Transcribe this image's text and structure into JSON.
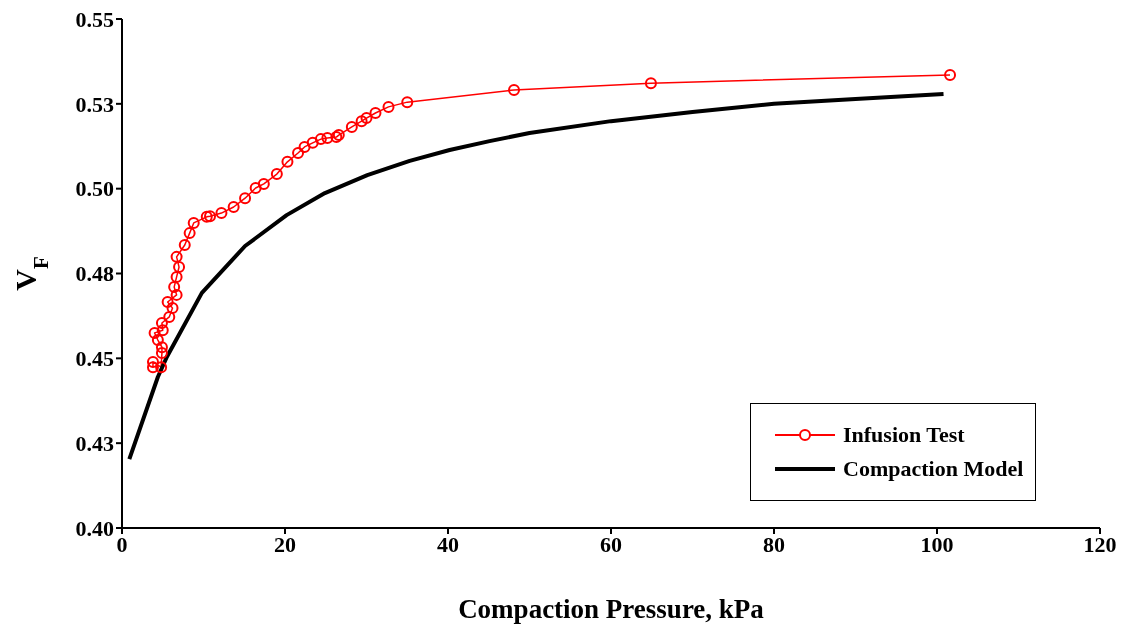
{
  "chart_data": {
    "type": "line",
    "xlabel": "Compaction Pressure, kPa",
    "ylabel": "V$_{F}$",
    "xlim": [
      0,
      120
    ],
    "xticks": [
      0,
      20,
      40,
      60,
      80,
      100,
      120
    ],
    "ylim": [
      0.4,
      0.55
    ],
    "yticks": [
      {
        "value": 0.4,
        "label": "0.40"
      },
      {
        "value": 0.425,
        "label": "0.43"
      },
      {
        "value": 0.45,
        "label": "0.45"
      },
      {
        "value": 0.475,
        "label": "0.48"
      },
      {
        "value": 0.5,
        "label": "0.50"
      },
      {
        "value": 0.525,
        "label": "0.53"
      },
      {
        "value": 0.55,
        "label": "0.55"
      }
    ],
    "grid": false,
    "legend": "bottom right",
    "series": [
      {
        "name": "Infusion Test",
        "color": "#ff0000",
        "marker": "circle",
        "line_style": "solid",
        "x": [
          3.8,
          3.8,
          4.8,
          4.9,
          4.9,
          4.4,
          4.0,
          5.0,
          4.9,
          5.8,
          6.2,
          5.6,
          6.7,
          6.4,
          6.7,
          7.0,
          6.7,
          7.7,
          8.3,
          8.8,
          10.4,
          10.8,
          12.2,
          13.7,
          15.1,
          16.4,
          17.4,
          19.0,
          20.3,
          21.6,
          22.4,
          23.4,
          24.4,
          25.2,
          26.3,
          26.6,
          28.2,
          29.4,
          30.0,
          31.1,
          32.7,
          35.0,
          48.1,
          64.9,
          101.6
        ],
        "values": [
          0.4474,
          0.4489,
          0.4474,
          0.4516,
          0.4533,
          0.4554,
          0.4575,
          0.4583,
          0.4604,
          0.4622,
          0.4648,
          0.4666,
          0.4687,
          0.471,
          0.474,
          0.4769,
          0.4799,
          0.4834,
          0.4869,
          0.4899,
          0.4917,
          0.4919,
          0.4928,
          0.4946,
          0.4972,
          0.5002,
          0.5014,
          0.5043,
          0.5079,
          0.5105,
          0.5123,
          0.5135,
          0.5146,
          0.5149,
          0.5152,
          0.5158,
          0.5182,
          0.5199,
          0.5208,
          0.5223,
          0.5241,
          0.5255,
          0.5291,
          0.5311,
          0.5335
        ]
      },
      {
        "name": "Compaction Model",
        "color": "#000000",
        "marker": "none",
        "line_style": "solid",
        "x": [
          0.9,
          4.4,
          5.5,
          9.8,
          15.1,
          20.2,
          24.9,
          30.1,
          35.3,
          40.2,
          45.1,
          50,
          60,
          70,
          80,
          90,
          100.8
        ],
        "values": [
          0.4203,
          0.4445,
          0.4504,
          0.4693,
          0.4831,
          0.4922,
          0.4987,
          0.504,
          0.5082,
          0.5114,
          0.514,
          0.5164,
          0.5199,
          0.5226,
          0.525,
          0.5264,
          0.5279
        ]
      }
    ]
  }
}
